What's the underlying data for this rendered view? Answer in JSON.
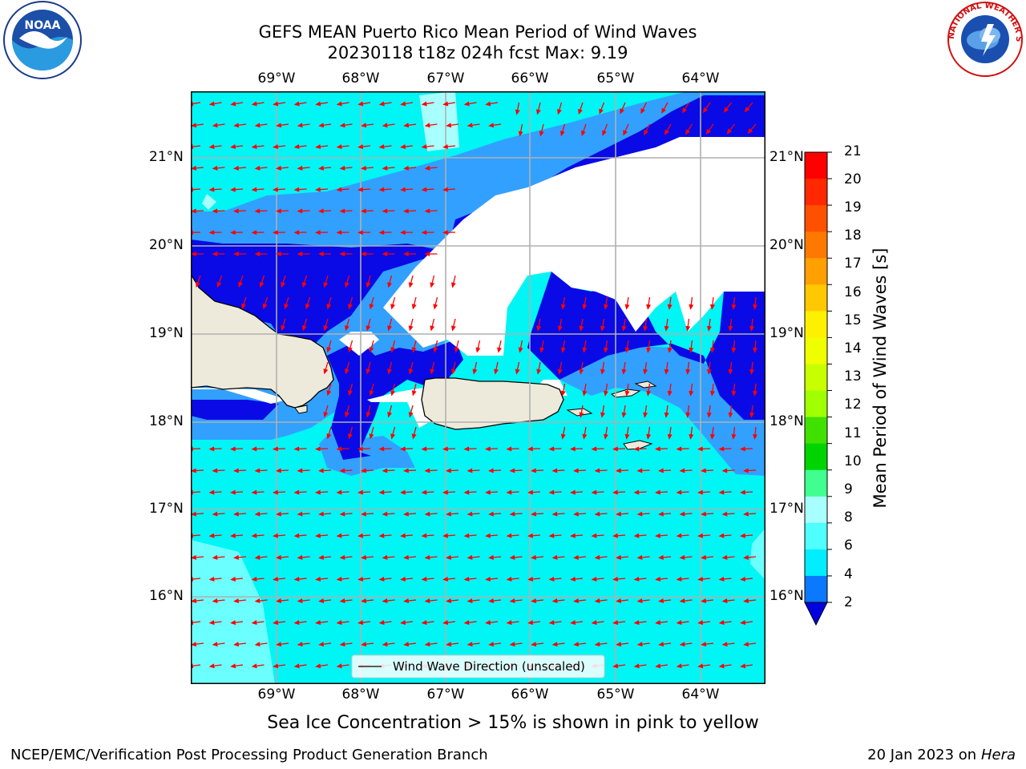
{
  "title": {
    "line1": "GEFS MEAN Puerto Rico Mean Period of Wind Waves",
    "line2": "20230118 t18z 024h fcst   Max: 9.19"
  },
  "map": {
    "lon_labels": [
      "69°W",
      "68°W",
      "67°W",
      "66°W",
      "65°W",
      "64°W"
    ],
    "lat_labels": [
      "21°N",
      "20°N",
      "19°N",
      "18°N",
      "17°N",
      "16°N"
    ],
    "legend_label": "Wind Wave Direction (unscaled)",
    "arrow_color": "#ff0000",
    "land_color": "#eeeadb",
    "fill_colors": {
      "lt4": "#0a0ae6",
      "4to6": "#32a0ff",
      "6to8": "#00f5f5",
      "8to9": "#6cffff"
    }
  },
  "colorbar": {
    "title": "Mean Period of Wind Waves [s]",
    "tick_labels": [
      "21",
      "20",
      "19",
      "18",
      "17",
      "16",
      "15",
      "14",
      "13",
      "12",
      "11",
      "10",
      "9",
      "8",
      "6",
      "4",
      "2"
    ],
    "colors_top_to_bottom": [
      "#ff0000",
      "#ff2800",
      "#ff5000",
      "#ff7800",
      "#ffa000",
      "#ffc800",
      "#fff000",
      "#f0ff00",
      "#c8ff00",
      "#a0ff00",
      "#40e000",
      "#00d400",
      "#40ff90",
      "#a8ffff",
      "#50ffff",
      "#00eeff",
      "#0a78ff"
    ],
    "under_color": "#0000e0"
  },
  "caption": "Sea Ice Concentration > 15% is shown in pink to yellow",
  "footer": {
    "left": "NCEP/EMC/Verification Post Processing Product Generation Branch",
    "right_prefix": "20 Jan 2023 on ",
    "right_host": "Hera"
  },
  "logos": {
    "noaa_text": "NOAA",
    "nws_text": "NATIONAL WEATHER SERVICE"
  }
}
